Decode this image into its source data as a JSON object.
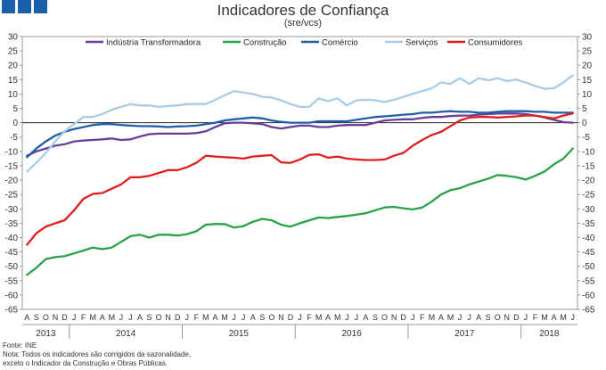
{
  "header": {
    "title": "Indicadores de Confiança",
    "subtitle": "(sre/vcs)",
    "logo_color": "#1a5fa8"
  },
  "notes": {
    "source": "Fonte: INE",
    "note_line1": "Nota: Todos os indicadores são corrigidos da sazonalidade,",
    "note_line2": "exceto o Indicador da Construção e Obras Públicas."
  },
  "chart_data": {
    "type": "line",
    "title": "Indicadores de Confiança",
    "subtitle": "(sre/vcs)",
    "xlabel": "",
    "ylabel": "",
    "ylim": [
      -65,
      30
    ],
    "yticks": [
      30,
      25,
      20,
      15,
      10,
      5,
      0,
      -5,
      -10,
      -15,
      -20,
      -25,
      -30,
      -35,
      -40,
      -45,
      -50,
      -55,
      -60,
      -65
    ],
    "grid": false,
    "legend": "top",
    "categories": [
      "A",
      "S",
      "O",
      "N",
      "D",
      "J",
      "F",
      "M",
      "A",
      "M",
      "J",
      "J",
      "A",
      "S",
      "O",
      "N",
      "D",
      "J",
      "F",
      "M",
      "A",
      "M",
      "J",
      "J",
      "A",
      "S",
      "O",
      "N",
      "D",
      "J",
      "F",
      "M",
      "A",
      "M",
      "J",
      "J",
      "A",
      "S",
      "O",
      "N",
      "D",
      "J",
      "F",
      "M",
      "A",
      "M",
      "J",
      "J",
      "A",
      "S",
      "O",
      "N",
      "D",
      "J",
      "F",
      "M",
      "A",
      "M",
      "J"
    ],
    "years": [
      {
        "label": "2013",
        "start": 0,
        "end": 5
      },
      {
        "label": "2014",
        "start": 5,
        "end": 17
      },
      {
        "label": "2015",
        "start": 17,
        "end": 29
      },
      {
        "label": "2016",
        "start": 29,
        "end": 41
      },
      {
        "label": "2017",
        "start": 41,
        "end": 53
      },
      {
        "label": "2018",
        "start": 53,
        "end": 59
      }
    ],
    "series": [
      {
        "name": "Indústria Transformadora",
        "color": "#6a3d9a",
        "values": [
          -11.5,
          -10,
          -9,
          -8,
          -7.5,
          -6.5,
          -6.2,
          -6,
          -5.8,
          -5.5,
          -6,
          -5.8,
          -4.8,
          -4,
          -3.8,
          -3.8,
          -3.8,
          -3.8,
          -3.6,
          -3,
          -1.5,
          -0.2,
          0,
          0,
          -0.2,
          -0.5,
          -1.5,
          -2,
          -1.5,
          -1,
          -1,
          -1.5,
          -1.5,
          -1,
          -0.8,
          -0.8,
          -0.8,
          0,
          0.8,
          1,
          1.2,
          1.2,
          1.7,
          2,
          2,
          2.3,
          2.5,
          2.5,
          2.8,
          3,
          3.2,
          3.2,
          3.2,
          3,
          2.5,
          1.8,
          1,
          0.2,
          0
        ]
      },
      {
        "name": "Construção",
        "color": "#27a24a",
        "values": [
          -53,
          -50.5,
          -47.5,
          -46.8,
          -46.5,
          -45.5,
          -44.5,
          -43.5,
          -44,
          -43.5,
          -41.5,
          -39.5,
          -39,
          -40,
          -39,
          -39,
          -39.3,
          -38.8,
          -37.8,
          -35.5,
          -35.3,
          -35.3,
          -36.5,
          -36,
          -34.5,
          -33.5,
          -34,
          -35.5,
          -36.2,
          -35,
          -34,
          -33,
          -33.2,
          -32.8,
          -32.5,
          -32,
          -31.5,
          -30.5,
          -29.5,
          -29.3,
          -29.8,
          -30.2,
          -29.5,
          -27.5,
          -25,
          -23.5,
          -22.8,
          -21.5,
          -20.5,
          -19.5,
          -18.2,
          -18.5,
          -19,
          -19.8,
          -18.5,
          -17,
          -14.5,
          -12.5,
          -9
        ]
      },
      {
        "name": "Comércio",
        "color": "#1f5fa8",
        "values": [
          -12,
          -9,
          -6.5,
          -4.5,
          -3.2,
          -2.2,
          -1.5,
          -0.8,
          -0.5,
          -0.5,
          -0.8,
          -1,
          -1.2,
          -1.2,
          -1.3,
          -1.5,
          -1.3,
          -1.2,
          -1,
          -0.5,
          0,
          0.8,
          1.2,
          1.5,
          1.8,
          1.5,
          0.8,
          0.3,
          0,
          0,
          0,
          0.5,
          0.5,
          0.5,
          0.5,
          1,
          1.5,
          2,
          2.2,
          2.5,
          2.8,
          3,
          3.5,
          3.5,
          3.8,
          4,
          3.8,
          3.8,
          3.5,
          3.5,
          3.8,
          4,
          4,
          4,
          3.8,
          3.8,
          3.5,
          3.5,
          3.5
        ]
      },
      {
        "name": "Serviços",
        "color": "#a8cce8",
        "values": [
          -17,
          -14,
          -10.5,
          -6.5,
          -3,
          -0.5,
          2,
          2,
          3,
          4.5,
          5.5,
          6.5,
          6,
          6,
          5.5,
          5.8,
          6,
          6.5,
          6.5,
          6.5,
          8,
          9.5,
          11,
          10.5,
          10,
          9,
          8.8,
          7.8,
          6.5,
          5.5,
          5.5,
          8.5,
          7.5,
          8.5,
          6,
          7.8,
          8,
          7.8,
          7.2,
          8,
          9,
          10,
          11,
          12,
          14,
          13.5,
          15.5,
          13.5,
          15.5,
          14.8,
          15.5,
          14.5,
          15,
          14,
          12.8,
          11.8,
          12,
          14,
          16.5
        ]
      },
      {
        "name": "Consumidores",
        "color": "#e01e1e",
        "values": [
          -42.5,
          -38.5,
          -36.2,
          -35,
          -34,
          -30.5,
          -26.5,
          -24.8,
          -24.5,
          -23,
          -21.5,
          -19,
          -19,
          -18.5,
          -17.5,
          -16.5,
          -16.5,
          -15.5,
          -14,
          -11.5,
          -11.8,
          -12,
          -12.2,
          -12.5,
          -11.8,
          -11.5,
          -11.3,
          -13.8,
          -14,
          -12.8,
          -11.2,
          -11,
          -12.2,
          -11.8,
          -12.5,
          -12.8,
          -13,
          -13,
          -12.8,
          -11.5,
          -10.5,
          -8,
          -6,
          -4.3,
          -3.2,
          -1.2,
          0.8,
          1.8,
          2,
          2,
          1.8,
          2,
          2.2,
          2.5,
          2.5,
          2,
          1.5,
          2.5,
          3.2
        ]
      }
    ]
  }
}
